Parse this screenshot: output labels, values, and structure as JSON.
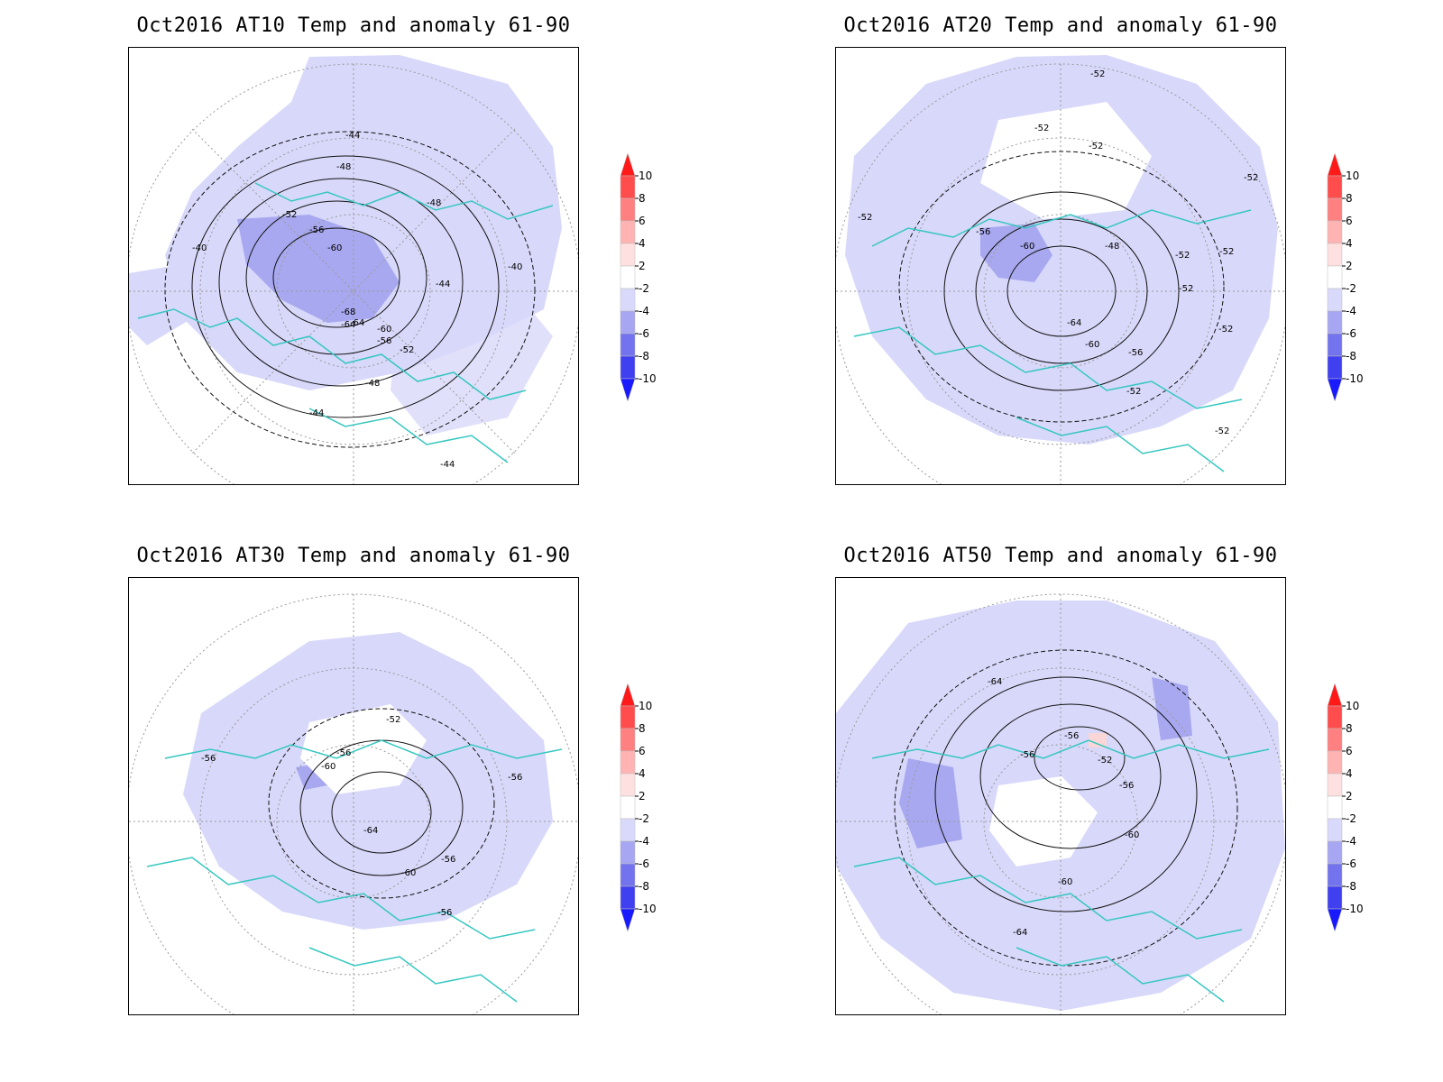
{
  "panels": [
    {
      "title": "Oct2016 AT10 Temp and anomaly 61-90",
      "contour_labels": [
        "-44",
        "-48",
        "-52",
        "-56",
        "-60",
        "-64",
        "-68",
        "-40",
        "-44",
        "-48",
        "-52",
        "-56",
        "-60",
        "-64",
        "-44",
        "-48",
        "-40",
        "-44"
      ]
    },
    {
      "title": "Oct2016 AT20 Temp and anomaly 61-90",
      "contour_labels": [
        "-52",
        "-52",
        "-52",
        "-52",
        "-56",
        "-60",
        "-48",
        "-52",
        "-52",
        "-64",
        "-60",
        "-56",
        "-52",
        "-52",
        "-52",
        "-52",
        "-52"
      ]
    },
    {
      "title": "Oct2016 AT30 Temp and anomaly 61-90",
      "contour_labels": [
        "-52",
        "-56",
        "-60",
        "-64",
        "-60",
        "-56",
        "-56",
        "-56",
        "-56"
      ]
    },
    {
      "title": "Oct2016 AT50 Temp and anomaly 61-90",
      "contour_labels": [
        "-64",
        "-56",
        "-52",
        "-56",
        "-60",
        "-60",
        "-64",
        "-56"
      ]
    }
  ],
  "colorbar": {
    "ticks": [
      "10",
      "8",
      "6",
      "4",
      "2",
      "-2",
      "-4",
      "-6",
      "-8",
      "-10"
    ],
    "colors": [
      "#ff1a1a",
      "#ff4d4d",
      "#ff8080",
      "#ffb3b3",
      "#ffe0e0",
      "#ffffff",
      "#d9d9fb",
      "#a6a6f2",
      "#7373ee",
      "#4040f0",
      "#1a1aff"
    ]
  },
  "colors": {
    "anomaly_light": "#d8d8fa",
    "anomaly_medium": "#a8a8f0",
    "anomaly_positive": "#fbd6d6",
    "coastline": "#36c7c0",
    "contour": "#111111",
    "grid": "#999999"
  }
}
